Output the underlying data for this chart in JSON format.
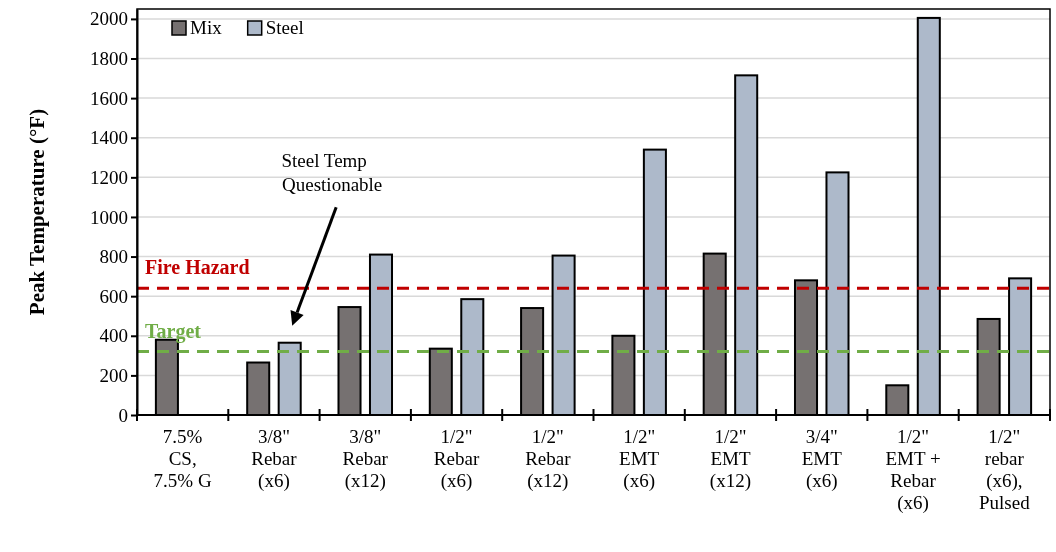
{
  "chart_data": {
    "type": "bar",
    "ylabel": "Peak Temperature (°F)",
    "categories": [
      "7.5%\nCS,\n7.5% G",
      "3/8\"\nRebar\n(x6)",
      "3/8\"\nRebar\n(x12)",
      "1/2\"\nRebar\n(x6)",
      "1/2\"\nRebar\n(x12)",
      "1/2\"\nEMT\n(x6)",
      "1/2\"\nEMT\n(x12)",
      "3/4\"\nEMT\n(x6)",
      "1/2\"\nEMT +\nRebar\n(x6)",
      "1/2\"\nrebar\n(x6),\nPulsed"
    ],
    "series": [
      {
        "name": "Mix",
        "color": "#767171",
        "values": [
          380,
          265,
          545,
          335,
          540,
          400,
          815,
          680,
          150,
          485
        ]
      },
      {
        "name": "Steel",
        "color": "#adb9ca",
        "values": [
          null,
          365,
          810,
          585,
          805,
          1340,
          1715,
          1225,
          2005,
          690
        ]
      }
    ],
    "ylim": [
      0,
      2050
    ],
    "yticks": [
      0,
      200,
      400,
      600,
      800,
      1000,
      1200,
      1400,
      1600,
      1800,
      2000
    ],
    "grid": "y",
    "legend": "top left",
    "ref_lines": [
      {
        "axis": "y",
        "value": 640,
        "label": "Fire Hazard",
        "color": "#c00000",
        "line_style": "dashed"
      },
      {
        "axis": "y",
        "value": 320,
        "label": "Target",
        "color": "#70ad47",
        "line_style": "dashed"
      }
    ],
    "annotations": [
      "Steel Temp\nQuestionable"
    ]
  }
}
